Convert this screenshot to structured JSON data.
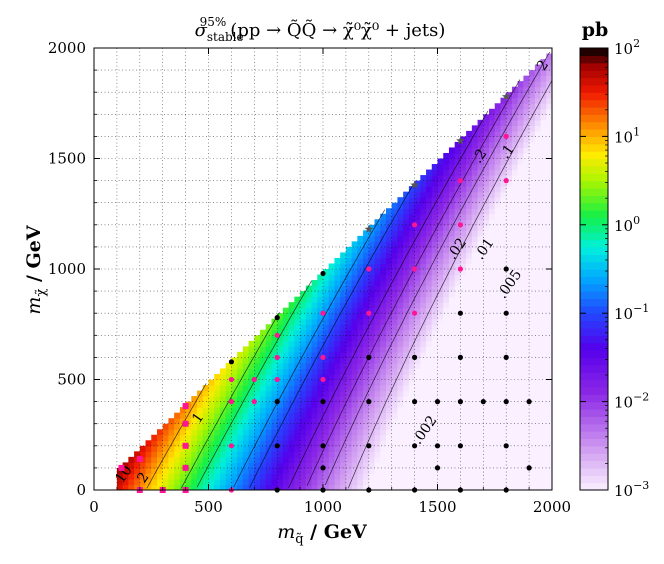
{
  "chart_data": {
    "type": "heatmap",
    "title": "σ_stable^95% (pp → Q̃Q̃ → χ̃⁰χ̃⁰ + jets)",
    "title_parts": {
      "sigma": "σ",
      "sub": "stable",
      "sup": "95%",
      "expr": "(pp → Q̃Q̃ → χ̃⁰χ̃⁰ + jets)"
    },
    "xlabel": "m_q̃ / GeV",
    "ylabel": "m_χ̃ / GeV",
    "xlabel_parts": {
      "sym": "m",
      "sub": "q̃",
      "unit": " / GeV"
    },
    "ylabel_parts": {
      "sym": "m",
      "sub": "χ̃",
      "unit": " / GeV"
    },
    "xlim": [
      0,
      2000
    ],
    "ylim": [
      0,
      2000
    ],
    "xticks": [
      0,
      500,
      1000,
      1500,
      2000
    ],
    "yticks": [
      0,
      500,
      1000,
      1500,
      2000
    ],
    "xtick_labels": [
      "0",
      "500",
      "1000",
      "1500",
      "2000"
    ],
    "ytick_labels": [
      "0",
      "500",
      "1000",
      "1500",
      "2000"
    ],
    "grid": true,
    "colorbar": {
      "label": "pb",
      "scale": "log",
      "range": [
        0.001,
        100
      ],
      "ticks": [
        0.001,
        0.01,
        0.1,
        1,
        10,
        100
      ],
      "tick_labels": [
        {
          "base": "10",
          "exp": "−3"
        },
        {
          "base": "10",
          "exp": "−2"
        },
        {
          "base": "10",
          "exp": "−1"
        },
        {
          "base": "10",
          "exp": "0"
        },
        {
          "base": "10",
          "exp": "1"
        },
        {
          "base": "10",
          "exp": "2"
        }
      ]
    },
    "contour_labels": [
      {
        "text": "10",
        "x": 145,
        "y": 60
      },
      {
        "text": "2",
        "x": 230,
        "y": 45
      },
      {
        "text": "1",
        "x": 470,
        "y": 315
      },
      {
        "text": ".002",
        "x": 1460,
        "y": 260
      },
      {
        "text": ".005",
        "x": 1830,
        "y": 920
      },
      {
        "text": ".02",
        "x": 1600,
        "y": 1080
      },
      {
        "text": ".01",
        "x": 1720,
        "y": 1080
      },
      {
        "text": ".2",
        "x": 1700,
        "y": 1500
      },
      {
        "text": ".1",
        "x": 1820,
        "y": 1520
      },
      {
        "text": "2",
        "x": 1975,
        "y": 1910
      }
    ],
    "points": [
      {
        "x": 120,
        "y": 100,
        "marker": "square",
        "color": "#ff1493"
      },
      {
        "x": 200,
        "y": 140,
        "marker": "square",
        "color": "#ff1493"
      },
      {
        "x": 400,
        "y": 380,
        "marker": "square",
        "color": "#ff1493"
      },
      {
        "x": 400,
        "y": 300,
        "marker": "square",
        "color": "#ff1493"
      },
      {
        "x": 400,
        "y": 200,
        "marker": "square",
        "color": "#ff1493"
      },
      {
        "x": 400,
        "y": 100,
        "marker": "square",
        "color": "#ff1493"
      },
      {
        "x": 400,
        "y": 0,
        "marker": "square",
        "color": "#ff1493"
      },
      {
        "x": 200,
        "y": 0,
        "marker": "square",
        "color": "#ff1493"
      },
      {
        "x": 300,
        "y": 0,
        "marker": "square",
        "color": "#ff1493"
      },
      {
        "x": 600,
        "y": 500,
        "marker": "circle",
        "color": "#ff1493"
      },
      {
        "x": 600,
        "y": 400,
        "marker": "circle",
        "color": "#ff1493"
      },
      {
        "x": 600,
        "y": 200,
        "marker": "circle",
        "color": "#ff1493"
      },
      {
        "x": 600,
        "y": 0,
        "marker": "circle",
        "color": "#ff1493"
      },
      {
        "x": 700,
        "y": 500,
        "marker": "circle",
        "color": "#ff1493"
      },
      {
        "x": 700,
        "y": 400,
        "marker": "circle",
        "color": "#ff1493"
      },
      {
        "x": 800,
        "y": 700,
        "marker": "circle",
        "color": "#ff1493"
      },
      {
        "x": 800,
        "y": 600,
        "marker": "circle",
        "color": "#ff1493"
      },
      {
        "x": 800,
        "y": 500,
        "marker": "circle",
        "color": "#ff1493"
      },
      {
        "x": 1000,
        "y": 800,
        "marker": "circle",
        "color": "#ff1493"
      },
      {
        "x": 1000,
        "y": 600,
        "marker": "circle",
        "color": "#ff1493"
      },
      {
        "x": 1000,
        "y": 500,
        "marker": "circle",
        "color": "#ff1493"
      },
      {
        "x": 1200,
        "y": 1000,
        "marker": "circle",
        "color": "#ff1493"
      },
      {
        "x": 1200,
        "y": 800,
        "marker": "circle",
        "color": "#ff1493"
      },
      {
        "x": 1400,
        "y": 1200,
        "marker": "circle",
        "color": "#ff1493"
      },
      {
        "x": 1400,
        "y": 1000,
        "marker": "circle",
        "color": "#ff1493"
      },
      {
        "x": 1400,
        "y": 800,
        "marker": "circle",
        "color": "#ff1493"
      },
      {
        "x": 1600,
        "y": 1400,
        "marker": "circle",
        "color": "#ff1493"
      },
      {
        "x": 1600,
        "y": 1200,
        "marker": "circle",
        "color": "#ff1493"
      },
      {
        "x": 1600,
        "y": 1000,
        "marker": "circle",
        "color": "#ff1493"
      },
      {
        "x": 1800,
        "y": 1600,
        "marker": "circle",
        "color": "#ff1493"
      },
      {
        "x": 1800,
        "y": 1400,
        "marker": "circle",
        "color": "#ff1493"
      },
      {
        "x": 600,
        "y": 580,
        "marker": "circle",
        "color": "#000000"
      },
      {
        "x": 800,
        "y": 780,
        "marker": "circle",
        "color": "#000000"
      },
      {
        "x": 1000,
        "y": 980,
        "marker": "circle",
        "color": "#000000"
      },
      {
        "x": 800,
        "y": 400,
        "marker": "circle",
        "color": "#000000"
      },
      {
        "x": 800,
        "y": 200,
        "marker": "circle",
        "color": "#000000"
      },
      {
        "x": 800,
        "y": 0,
        "marker": "circle",
        "color": "#000000"
      },
      {
        "x": 1000,
        "y": 400,
        "marker": "circle",
        "color": "#000000"
      },
      {
        "x": 1000,
        "y": 200,
        "marker": "circle",
        "color": "#000000"
      },
      {
        "x": 1000,
        "y": 100,
        "marker": "circle",
        "color": "#000000"
      },
      {
        "x": 1000,
        "y": 0,
        "marker": "circle",
        "color": "#000000"
      },
      {
        "x": 1200,
        "y": 600,
        "marker": "circle",
        "color": "#000000"
      },
      {
        "x": 1200,
        "y": 400,
        "marker": "circle",
        "color": "#000000"
      },
      {
        "x": 1200,
        "y": 200,
        "marker": "circle",
        "color": "#000000"
      },
      {
        "x": 1200,
        "y": 0,
        "marker": "circle",
        "color": "#000000"
      },
      {
        "x": 1400,
        "y": 600,
        "marker": "circle",
        "color": "#000000"
      },
      {
        "x": 1400,
        "y": 400,
        "marker": "circle",
        "color": "#000000"
      },
      {
        "x": 1400,
        "y": 200,
        "marker": "circle",
        "color": "#000000"
      },
      {
        "x": 1400,
        "y": 0,
        "marker": "circle",
        "color": "#000000"
      },
      {
        "x": 1500,
        "y": 400,
        "marker": "circle",
        "color": "#000000"
      },
      {
        "x": 1500,
        "y": 200,
        "marker": "circle",
        "color": "#000000"
      },
      {
        "x": 1500,
        "y": 100,
        "marker": "circle",
        "color": "#000000"
      },
      {
        "x": 1600,
        "y": 800,
        "marker": "circle",
        "color": "#000000"
      },
      {
        "x": 1600,
        "y": 600,
        "marker": "circle",
        "color": "#000000"
      },
      {
        "x": 1600,
        "y": 400,
        "marker": "circle",
        "color": "#000000"
      },
      {
        "x": 1600,
        "y": 200,
        "marker": "circle",
        "color": "#000000"
      },
      {
        "x": 1600,
        "y": 0,
        "marker": "circle",
        "color": "#000000"
      },
      {
        "x": 1700,
        "y": 400,
        "marker": "circle",
        "color": "#000000"
      },
      {
        "x": 1800,
        "y": 1000,
        "marker": "circle",
        "color": "#000000"
      },
      {
        "x": 1800,
        "y": 800,
        "marker": "circle",
        "color": "#000000"
      },
      {
        "x": 1800,
        "y": 600,
        "marker": "circle",
        "color": "#000000"
      },
      {
        "x": 1800,
        "y": 400,
        "marker": "circle",
        "color": "#000000"
      },
      {
        "x": 1800,
        "y": 200,
        "marker": "circle",
        "color": "#000000"
      },
      {
        "x": 1800,
        "y": 0,
        "marker": "circle",
        "color": "#000000"
      },
      {
        "x": 1900,
        "y": 400,
        "marker": "circle",
        "color": "#000000"
      },
      {
        "x": 1900,
        "y": 100,
        "marker": "circle",
        "color": "#000000"
      },
      {
        "x": 1200,
        "y": 1180,
        "marker": "star",
        "color": "#555555"
      },
      {
        "x": 1400,
        "y": 1380,
        "marker": "star",
        "color": "#555555"
      },
      {
        "x": 1600,
        "y": 1580,
        "marker": "star",
        "color": "#555555"
      },
      {
        "x": 1800,
        "y": 1780,
        "marker": "star",
        "color": "#555555"
      }
    ]
  }
}
